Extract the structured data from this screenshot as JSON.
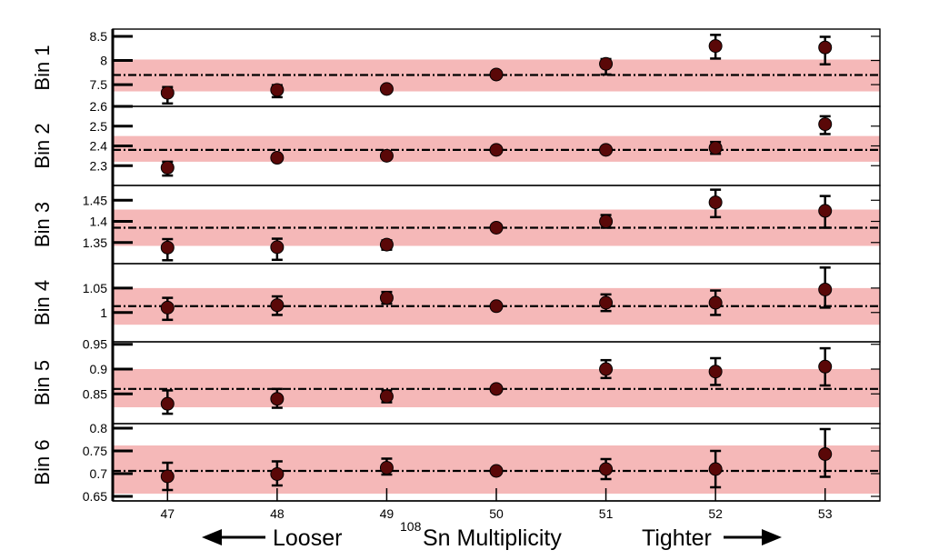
{
  "chart_data": {
    "type": "scatter",
    "x_categories": [
      "47",
      "48",
      "49",
      "50",
      "51",
      "52",
      "53"
    ],
    "xlim": [
      46.5,
      53.5
    ],
    "xlabel_isotope_mass": "108",
    "xlabel_main": "Sn Multiplicity",
    "left_annotation": "Looser",
    "right_annotation": "Tighter",
    "band_color": "#f5b8b8",
    "marker_color": "#5a0808",
    "panels": [
      {
        "label": "Bin 1",
        "ylim": [
          7.05,
          8.65
        ],
        "yticks": [
          "7.5",
          "8",
          "8.5"
        ],
        "reference": 7.7,
        "band": [
          7.36,
          8.02
        ],
        "values": [
          7.33,
          7.39,
          7.41,
          7.71,
          7.93,
          8.3,
          8.27
        ],
        "errors_up": [
          0.12,
          0.1,
          0.04,
          0.04,
          0.1,
          0.23,
          0.22
        ],
        "errors_down": [
          0.22,
          0.15,
          0.04,
          0.04,
          0.22,
          0.26,
          0.35
        ]
      },
      {
        "label": "Bin 2",
        "ylim": [
          2.2,
          2.6
        ],
        "yticks": [
          "2.3",
          "2.4",
          "2.5",
          "2.6"
        ],
        "reference": 2.38,
        "band": [
          2.32,
          2.45
        ],
        "values": [
          2.29,
          2.34,
          2.35,
          2.38,
          2.38,
          2.39,
          2.51
        ],
        "errors_up": [
          0.03,
          0.01,
          0.01,
          0.01,
          0.01,
          0.03,
          0.04
        ],
        "errors_down": [
          0.04,
          0.01,
          0.01,
          0.01,
          0.01,
          0.03,
          0.05
        ]
      },
      {
        "label": "Bin 3",
        "ylim": [
          1.3,
          1.485
        ],
        "yticks": [
          "1.35",
          "1.4",
          "1.45"
        ],
        "reference": 1.385,
        "band": [
          1.342,
          1.428
        ],
        "values": [
          1.338,
          1.339,
          1.345,
          1.385,
          1.4,
          1.445,
          1.425
        ],
        "errors_up": [
          0.02,
          0.02,
          0.01,
          0.005,
          0.015,
          0.03,
          0.035
        ],
        "errors_down": [
          0.03,
          0.03,
          0.012,
          0.005,
          0.015,
          0.035,
          0.04
        ]
      },
      {
        "label": "Bin 4",
        "ylim": [
          0.94,
          1.1
        ],
        "yticks": [
          "1",
          "1.05"
        ],
        "reference": 1.013,
        "band": [
          0.975,
          1.05
        ],
        "values": [
          1.01,
          1.015,
          1.03,
          1.013,
          1.02,
          1.02,
          1.047
        ],
        "errors_up": [
          0.02,
          0.018,
          0.012,
          0.004,
          0.017,
          0.025,
          0.045
        ],
        "errors_down": [
          0.025,
          0.02,
          0.012,
          0.004,
          0.017,
          0.025,
          0.037
        ]
      },
      {
        "label": "Bin 5",
        "ylim": [
          0.79,
          0.955
        ],
        "yticks": [
          "0.85",
          "0.9",
          "0.95"
        ],
        "reference": 0.86,
        "band": [
          0.823,
          0.9
        ],
        "values": [
          0.83,
          0.84,
          0.845,
          0.86,
          0.9,
          0.895,
          0.905
        ],
        "errors_up": [
          0.027,
          0.02,
          0.012,
          0.004,
          0.018,
          0.027,
          0.037
        ],
        "errors_down": [
          0.02,
          0.018,
          0.012,
          0.004,
          0.018,
          0.027,
          0.038
        ]
      },
      {
        "label": "Bin 6",
        "ylim": [
          0.64,
          0.81
        ],
        "yticks": [
          "0.65",
          "0.7",
          "0.75",
          "0.8"
        ],
        "reference": 0.706,
        "band": [
          0.656,
          0.762
        ],
        "values": [
          0.694,
          0.699,
          0.713,
          0.706,
          0.71,
          0.71,
          0.743
        ],
        "errors_up": [
          0.03,
          0.028,
          0.02,
          0.005,
          0.022,
          0.04,
          0.055
        ],
        "errors_down": [
          0.03,
          0.025,
          0.015,
          0.005,
          0.022,
          0.04,
          0.05
        ]
      }
    ]
  }
}
